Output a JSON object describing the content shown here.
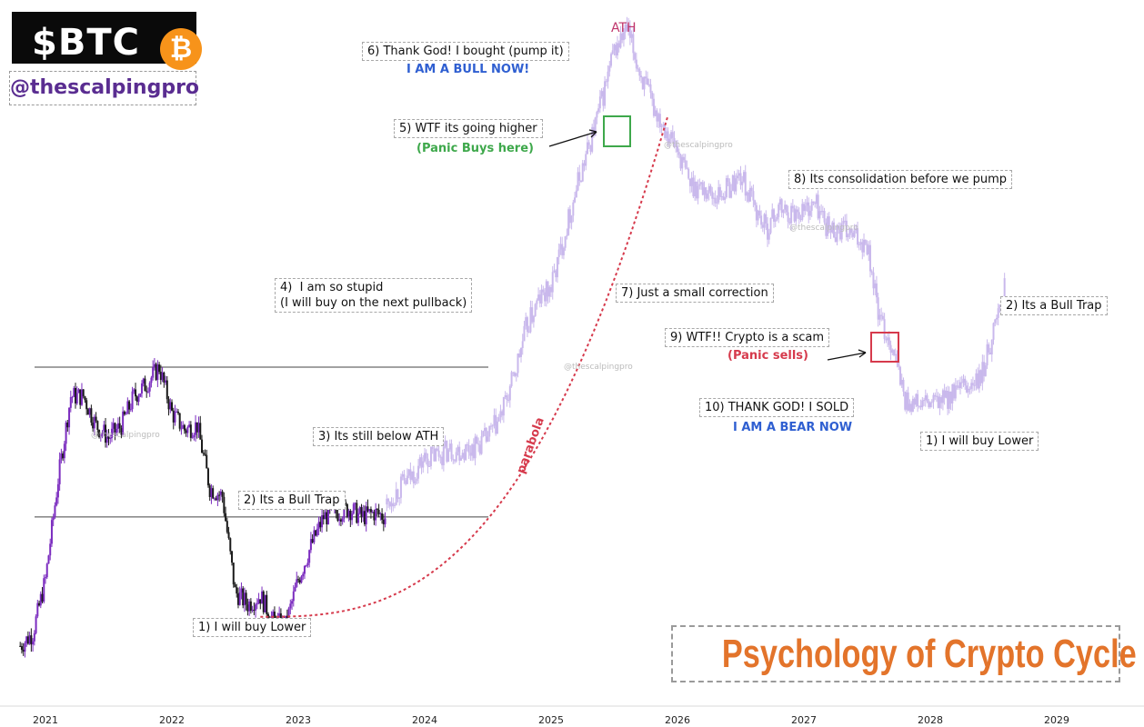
{
  "brand": {
    "ticker": "$BTC",
    "coin_glyph": "₿",
    "handle": "@thescalpingpro"
  },
  "watermark": "@thescalpingpro",
  "title": "Psychology of Crypto Cycle",
  "colors": {
    "cycle1_candle": "#7b2cbf",
    "cycle1_dark": "#1a1a1a",
    "projection_candle": "#c9b8ec",
    "parabola": "#d63a4c",
    "panic_buy_box": "#3ea84b",
    "panic_sell_box": "#d63a4c",
    "bull_text": "#2f5fd1",
    "ath_text": "#c0356b",
    "title_text": "#e3742b"
  },
  "annotations": {
    "a1": "1) I will buy Lower",
    "a2": "2) Its a Bull Trap",
    "a3": "3) Its still below ATH",
    "a4": "4)  I am so stupid\n(I will buy on the next pullback)",
    "a5": "5) WTF its going higher",
    "a5_sub": "(Panic Buys here)",
    "a6": "6) Thank God! I bought (pump it)",
    "a6_sub": "I AM A BULL NOW!",
    "ath": "ATH",
    "a7": "7) Just a small correction",
    "a8": "8) Its consolidation before we pump",
    "a9": "9)  WTF!! Crypto is a scam",
    "a9_sub": "(Panic sells)",
    "a10": "10) THANK GOD! I SOLD",
    "a10_sub": "I AM A BEAR NOW",
    "b1": "1) I will buy Lower",
    "b2": "2) Its a Bull Trap",
    "parabola": "parabola"
  },
  "chart_data": {
    "type": "line",
    "title": "Psychology of Crypto Cycle",
    "x_ticks": [
      "2021",
      "2022",
      "2023",
      "2024",
      "2025",
      "2026",
      "2027",
      "2028",
      "2029"
    ],
    "series": [
      {
        "x": [
          2020.8,
          2020.9,
          2021.0,
          2021.1,
          2021.2,
          2021.3,
          2021.4,
          2021.5,
          2021.6,
          2021.7,
          2021.8,
          2021.9,
          2022.0,
          2022.1,
          2022.2,
          2022.3,
          2022.4,
          2022.5,
          2022.6,
          2022.7,
          2022.8,
          2022.9,
          2023.0,
          2023.1,
          2023.2,
          2023.3,
          2023.4,
          2023.5,
          2023.6,
          2023.7
        ],
        "values": [
          0.02,
          0.05,
          0.18,
          0.42,
          0.62,
          0.62,
          0.55,
          0.52,
          0.55,
          0.62,
          0.65,
          0.69,
          0.58,
          0.54,
          0.55,
          0.4,
          0.38,
          0.15,
          0.12,
          0.14,
          0.08,
          0.07,
          0.18,
          0.26,
          0.33,
          0.34,
          0.35,
          0.33,
          0.34,
          0.33
        ]
      },
      {
        "x": [
          2023.7,
          2023.8,
          2023.9,
          2024.0,
          2024.1,
          2024.2,
          2024.3,
          2024.4,
          2024.5,
          2024.6,
          2024.7,
          2024.8,
          2024.9,
          2025.0,
          2025.1,
          2025.2,
          2025.3,
          2025.4,
          2025.5,
          2025.6,
          2025.7,
          2025.8,
          2025.9,
          2026.0,
          2026.1,
          2026.2,
          2026.3,
          2026.4,
          2026.5,
          2026.6,
          2026.7,
          2026.8,
          2026.9,
          2027.0,
          2027.1,
          2027.2,
          2027.3,
          2027.4,
          2027.5,
          2027.6,
          2027.7,
          2027.8,
          2027.9,
          2028.0,
          2028.1,
          2028.2,
          2028.3,
          2028.4,
          2028.5,
          2028.6
        ],
        "values": [
          0.36,
          0.4,
          0.43,
          0.47,
          0.48,
          0.49,
          0.49,
          0.5,
          0.52,
          0.57,
          0.66,
          0.78,
          0.85,
          0.88,
          1.0,
          1.12,
          1.22,
          1.33,
          1.45,
          1.5,
          1.4,
          1.32,
          1.27,
          1.21,
          1.13,
          1.12,
          1.1,
          1.12,
          1.15,
          1.08,
          1.02,
          1.07,
          1.06,
          1.07,
          1.08,
          1.02,
          1.02,
          1.0,
          0.99,
          0.8,
          0.74,
          0.61,
          0.6,
          0.6,
          0.61,
          0.63,
          0.64,
          0.66,
          0.78,
          0.89
        ]
      }
    ],
    "reference_lines": [
      0.69,
      0.33
    ],
    "grid": false
  }
}
